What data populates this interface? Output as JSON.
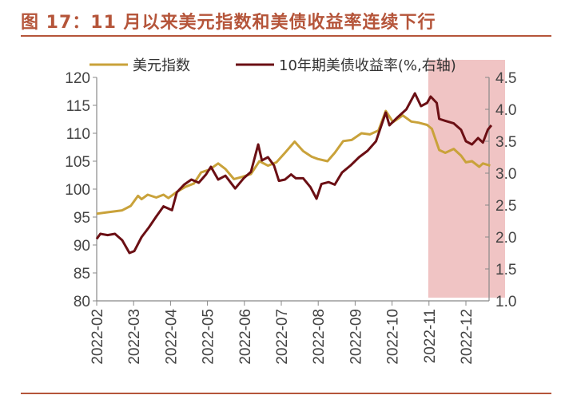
{
  "title": "图 17：11 月以来美元指数和美债收益率连续下行",
  "chart_data": {
    "type": "line",
    "title": "图 17：11 月以来美元指数和美债收益率连续下行",
    "x_ticks": [
      "2022-02",
      "2022-03",
      "2022-04",
      "2022-05",
      "2022-06",
      "2022-07",
      "2022-08",
      "2022-09",
      "2022-10",
      "2022-11",
      "2022-12"
    ],
    "y_left": {
      "range": [
        80,
        120
      ],
      "ticks": [
        "80",
        "85",
        "90",
        "95",
        "100",
        "105",
        "110",
        "115",
        "120"
      ]
    },
    "y_right": {
      "range": [
        1.0,
        4.5
      ],
      "ticks": [
        "1.0",
        "1.5",
        "2.0",
        "2.5",
        "3.0",
        "3.5",
        "4.0",
        "4.5"
      ]
    },
    "legend_position": "top",
    "grid": false,
    "highlight": {
      "from": "2022-11-01",
      "to": "2022-12-31",
      "color": "#f0c4c4"
    },
    "series": [
      {
        "name": "美元指数",
        "axis": "left",
        "color": "#c9a23a",
        "points": [
          [
            "2022-02-01",
            95.6
          ],
          [
            "2022-02-08",
            95.8
          ],
          [
            "2022-02-15",
            96.0
          ],
          [
            "2022-02-22",
            96.2
          ],
          [
            "2022-03-01",
            97.0
          ],
          [
            "2022-03-07",
            98.8
          ],
          [
            "2022-03-10",
            98.2
          ],
          [
            "2022-03-15",
            99.0
          ],
          [
            "2022-03-22",
            98.5
          ],
          [
            "2022-03-28",
            99.0
          ],
          [
            "2022-04-01",
            98.4
          ],
          [
            "2022-04-08",
            99.5
          ],
          [
            "2022-04-15",
            100.4
          ],
          [
            "2022-04-22",
            101.0
          ],
          [
            "2022-04-28",
            103.0
          ],
          [
            "2022-05-05",
            103.5
          ],
          [
            "2022-05-12",
            104.6
          ],
          [
            "2022-05-18",
            103.6
          ],
          [
            "2022-05-25",
            101.8
          ],
          [
            "2022-06-01",
            102.2
          ],
          [
            "2022-06-08",
            102.7
          ],
          [
            "2022-06-15",
            105.0
          ],
          [
            "2022-06-22",
            104.2
          ],
          [
            "2022-06-29",
            104.8
          ],
          [
            "2022-07-06",
            106.5
          ],
          [
            "2022-07-14",
            108.5
          ],
          [
            "2022-07-21",
            106.8
          ],
          [
            "2022-07-28",
            105.8
          ],
          [
            "2022-08-02",
            105.4
          ],
          [
            "2022-08-10",
            105.0
          ],
          [
            "2022-08-16",
            106.5
          ],
          [
            "2022-08-23",
            108.6
          ],
          [
            "2022-08-30",
            108.8
          ],
          [
            "2022-09-07",
            110.0
          ],
          [
            "2022-09-14",
            109.8
          ],
          [
            "2022-09-21",
            110.5
          ],
          [
            "2022-09-27",
            114.0
          ],
          [
            "2022-10-03",
            112.0
          ],
          [
            "2022-10-11",
            113.2
          ],
          [
            "2022-10-18",
            112.1
          ],
          [
            "2022-10-24",
            111.9
          ],
          [
            "2022-10-31",
            111.5
          ],
          [
            "2022-11-04",
            110.8
          ],
          [
            "2022-11-10",
            107.0
          ],
          [
            "2022-11-15",
            106.5
          ],
          [
            "2022-11-22",
            107.2
          ],
          [
            "2022-11-28",
            106.0
          ],
          [
            "2022-12-02",
            104.8
          ],
          [
            "2022-12-07",
            105.0
          ],
          [
            "2022-12-13",
            104.0
          ],
          [
            "2022-12-16",
            104.6
          ],
          [
            "2022-12-22",
            104.2
          ]
        ]
      },
      {
        "name": "10年期美债收益率(%,右轴)",
        "axis": "right",
        "color": "#6b0f14",
        "points": [
          [
            "2022-02-01",
            1.97
          ],
          [
            "2022-02-04",
            2.05
          ],
          [
            "2022-02-10",
            2.03
          ],
          [
            "2022-02-16",
            2.05
          ],
          [
            "2022-02-22",
            1.95
          ],
          [
            "2022-02-28",
            1.75
          ],
          [
            "2022-03-04",
            1.78
          ],
          [
            "2022-03-10",
            2.0
          ],
          [
            "2022-03-16",
            2.15
          ],
          [
            "2022-03-22",
            2.32
          ],
          [
            "2022-03-28",
            2.48
          ],
          [
            "2022-04-04",
            2.42
          ],
          [
            "2022-04-08",
            2.7
          ],
          [
            "2022-04-14",
            2.82
          ],
          [
            "2022-04-20",
            2.9
          ],
          [
            "2022-04-26",
            2.85
          ],
          [
            "2022-05-02",
            2.98
          ],
          [
            "2022-05-06",
            3.1
          ],
          [
            "2022-05-12",
            2.9
          ],
          [
            "2022-05-18",
            2.96
          ],
          [
            "2022-05-26",
            2.76
          ],
          [
            "2022-06-02",
            2.92
          ],
          [
            "2022-06-08",
            3.02
          ],
          [
            "2022-06-14",
            3.45
          ],
          [
            "2022-06-17",
            3.2
          ],
          [
            "2022-06-22",
            3.25
          ],
          [
            "2022-06-27",
            3.12
          ],
          [
            "2022-07-01",
            2.88
          ],
          [
            "2022-07-06",
            2.9
          ],
          [
            "2022-07-11",
            2.98
          ],
          [
            "2022-07-15",
            2.92
          ],
          [
            "2022-07-21",
            2.92
          ],
          [
            "2022-07-27",
            2.78
          ],
          [
            "2022-08-01",
            2.6
          ],
          [
            "2022-08-05",
            2.83
          ],
          [
            "2022-08-11",
            2.86
          ],
          [
            "2022-08-16",
            2.82
          ],
          [
            "2022-08-22",
            3.01
          ],
          [
            "2022-08-29",
            3.12
          ],
          [
            "2022-09-05",
            3.25
          ],
          [
            "2022-09-12",
            3.35
          ],
          [
            "2022-09-19",
            3.5
          ],
          [
            "2022-09-27",
            3.95
          ],
          [
            "2022-09-30",
            3.75
          ],
          [
            "2022-10-07",
            3.88
          ],
          [
            "2022-10-14",
            4.0
          ],
          [
            "2022-10-21",
            4.25
          ],
          [
            "2022-10-26",
            4.05
          ],
          [
            "2022-10-31",
            4.1
          ],
          [
            "2022-11-03",
            4.2
          ],
          [
            "2022-11-08",
            4.1
          ],
          [
            "2022-11-10",
            3.85
          ],
          [
            "2022-11-15",
            3.82
          ],
          [
            "2022-11-22",
            3.78
          ],
          [
            "2022-11-28",
            3.68
          ],
          [
            "2022-12-02",
            3.5
          ],
          [
            "2022-12-07",
            3.45
          ],
          [
            "2022-12-12",
            3.55
          ],
          [
            "2022-12-16",
            3.48
          ],
          [
            "2022-12-20",
            3.68
          ],
          [
            "2022-12-23",
            3.75
          ]
        ]
      }
    ]
  }
}
